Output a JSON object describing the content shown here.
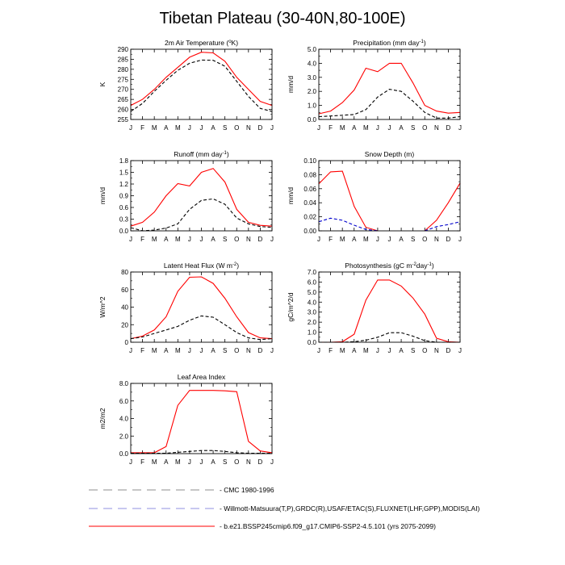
{
  "title": "Tibetan Plateau (30-40N,80-100E)",
  "months": [
    "J",
    "F",
    "M",
    "A",
    "M",
    "J",
    "J",
    "A",
    "S",
    "O",
    "N",
    "D",
    "J"
  ],
  "legend": {
    "items": [
      {
        "label": "CMC 1980-1996",
        "color": "#8c8c8c",
        "dash": "dashed"
      },
      {
        "label": "Willmott-Matsuura(T,P),GRDC(R),USAF/ETAC(S),FLUXNET(LHF,GPP),MODIS(LAI)",
        "color": "#9090e0",
        "dash": "dashed"
      },
      {
        "label": "b.e21.BSSP245cmip6.f09_g17.CMIP6-SSP2-4.5.101 (yrs 2075-2099)",
        "color": "#ff0000",
        "dash": "solid"
      }
    ]
  },
  "chart_data": [
    {
      "type": "line",
      "title": "2m Air Temperature (",
      "title_sup": "o",
      "title_tail": "K)",
      "ylabel": "K",
      "ylim": [
        255,
        290
      ],
      "yticks": [
        255,
        260,
        265,
        270,
        275,
        280,
        285,
        290
      ],
      "series": [
        {
          "color": "#ff0000",
          "dash": "solid",
          "values": [
            262,
            265,
            270,
            276,
            281,
            286,
            288.5,
            288.2,
            284,
            276,
            270,
            264,
            262
          ]
        },
        {
          "color": "#000000",
          "dash": "dashed",
          "values": [
            259,
            263,
            269,
            274.5,
            279.5,
            283,
            284.6,
            284.5,
            281.5,
            274,
            266.5,
            260.5,
            259
          ]
        }
      ]
    },
    {
      "type": "line",
      "title": "Precipitation (mm day",
      "title_sup": "-1",
      "title_tail": ")",
      "ylabel": "mm/d",
      "ylim": [
        0,
        5
      ],
      "yticks": [
        "0.0",
        "1.0",
        "2.0",
        "3.0",
        "4.0",
        "5.0"
      ],
      "series": [
        {
          "color": "#ff0000",
          "dash": "solid",
          "values": [
            0.4,
            0.6,
            1.2,
            2.1,
            3.65,
            3.4,
            4.0,
            4.0,
            2.6,
            1.0,
            0.6,
            0.45,
            0.5
          ]
        },
        {
          "color": "#000000",
          "dash": "dashed",
          "values": [
            0.2,
            0.25,
            0.3,
            0.35,
            0.7,
            1.6,
            2.15,
            2.0,
            1.3,
            0.5,
            0.1,
            0.1,
            0.2
          ]
        }
      ]
    },
    {
      "type": "line",
      "title": "Runoff (mm day",
      "title_sup": "-1",
      "title_tail": ")",
      "ylabel": "mm/d",
      "ylim": [
        0,
        1.8
      ],
      "yticks": [
        "0.0",
        "0.3",
        "0.6",
        "0.9",
        "1.2",
        "1.5",
        "1.8"
      ],
      "series": [
        {
          "color": "#ff0000",
          "dash": "solid",
          "values": [
            0.12,
            0.22,
            0.48,
            0.9,
            1.21,
            1.15,
            1.5,
            1.6,
            1.25,
            0.55,
            0.22,
            0.14,
            0.12
          ]
        },
        {
          "color": "#000000",
          "dash": "dashed",
          "values": [
            0.08,
            0.0,
            0.02,
            0.07,
            0.18,
            0.55,
            0.78,
            0.82,
            0.68,
            0.33,
            0.18,
            0.11,
            0.09
          ]
        }
      ]
    },
    {
      "type": "line",
      "title": "Snow Depth (m)",
      "title_sup": "",
      "title_tail": "",
      "ylabel": "mm/d",
      "ylim": [
        0,
        0.1
      ],
      "yticks": [
        "0.00",
        "0.02",
        "0.04",
        "0.06",
        "0.08",
        "0.10"
      ],
      "series": [
        {
          "color": "#ff0000",
          "dash": "solid",
          "values": [
            0.067,
            0.084,
            0.085,
            0.035,
            0.005,
            0.0,
            null,
            null,
            null,
            0.0,
            0.015,
            0.04,
            0.068
          ]
        },
        {
          "color": "#0000cc",
          "dash": "dashed",
          "values": [
            0.013,
            0.018,
            0.015,
            0.008,
            0.002,
            0.0,
            null,
            null,
            null,
            0.0,
            0.006,
            0.009,
            0.013
          ]
        }
      ]
    },
    {
      "type": "line",
      "title": "Latent Heat Flux (W m",
      "title_sup": "-2",
      "title_tail": ")",
      "ylabel": "W/m^2",
      "ylim": [
        0,
        80
      ],
      "yticks": [
        "0",
        "20",
        "40",
        "60",
        "80"
      ],
      "series": [
        {
          "color": "#ff0000",
          "dash": "solid",
          "values": [
            4,
            7,
            14,
            29,
            58,
            74,
            74.5,
            67,
            50,
            29,
            11,
            5,
            4
          ]
        },
        {
          "color": "#000000",
          "dash": "dashed",
          "values": [
            4,
            6,
            10,
            14,
            18,
            25,
            30,
            28.5,
            20,
            11,
            5,
            3,
            4
          ]
        }
      ]
    },
    {
      "type": "line",
      "title": "Photosynthesis (gC m",
      "title_sup": "-2",
      "title_mid": "day",
      "title_sup2": "-1",
      "title_tail": ")",
      "ylabel": "gC/m^2/d",
      "ylim": [
        0,
        7
      ],
      "yticks": [
        "0.0",
        "1.0",
        "2.0",
        "3.0",
        "4.0",
        "5.0",
        "6.0",
        "7.0"
      ],
      "series": [
        {
          "color": "#ff0000",
          "dash": "solid",
          "values": [
            0.0,
            0.0,
            0.05,
            0.8,
            4.2,
            6.2,
            6.2,
            5.6,
            4.4,
            2.8,
            0.4,
            0.05,
            0.0
          ]
        },
        {
          "color": "#000000",
          "dash": "dashed",
          "values": [
            0.0,
            0.0,
            0.0,
            0.05,
            0.2,
            0.5,
            0.95,
            0.95,
            0.6,
            0.15,
            0.0,
            0.0,
            0.0
          ]
        }
      ]
    },
    {
      "type": "line",
      "title": "Leaf Area Index",
      "title_sup": "",
      "title_tail": "",
      "ylabel": "m2/m2",
      "ylim": [
        0,
        8
      ],
      "yticks": [
        "0.0",
        "2.0",
        "4.0",
        "6.0",
        "8.0"
      ],
      "series": [
        {
          "color": "#ff0000",
          "dash": "solid",
          "values": [
            0.1,
            0.1,
            0.1,
            0.8,
            5.5,
            7.2,
            7.2,
            7.2,
            7.15,
            7.05,
            1.4,
            0.3,
            0.1
          ]
        },
        {
          "color": "#000000",
          "dash": "dashed",
          "values": [
            0.05,
            0.05,
            0.05,
            0.05,
            0.15,
            0.25,
            0.35,
            0.35,
            0.25,
            0.1,
            0.05,
            0.05,
            0.05
          ]
        }
      ]
    }
  ]
}
